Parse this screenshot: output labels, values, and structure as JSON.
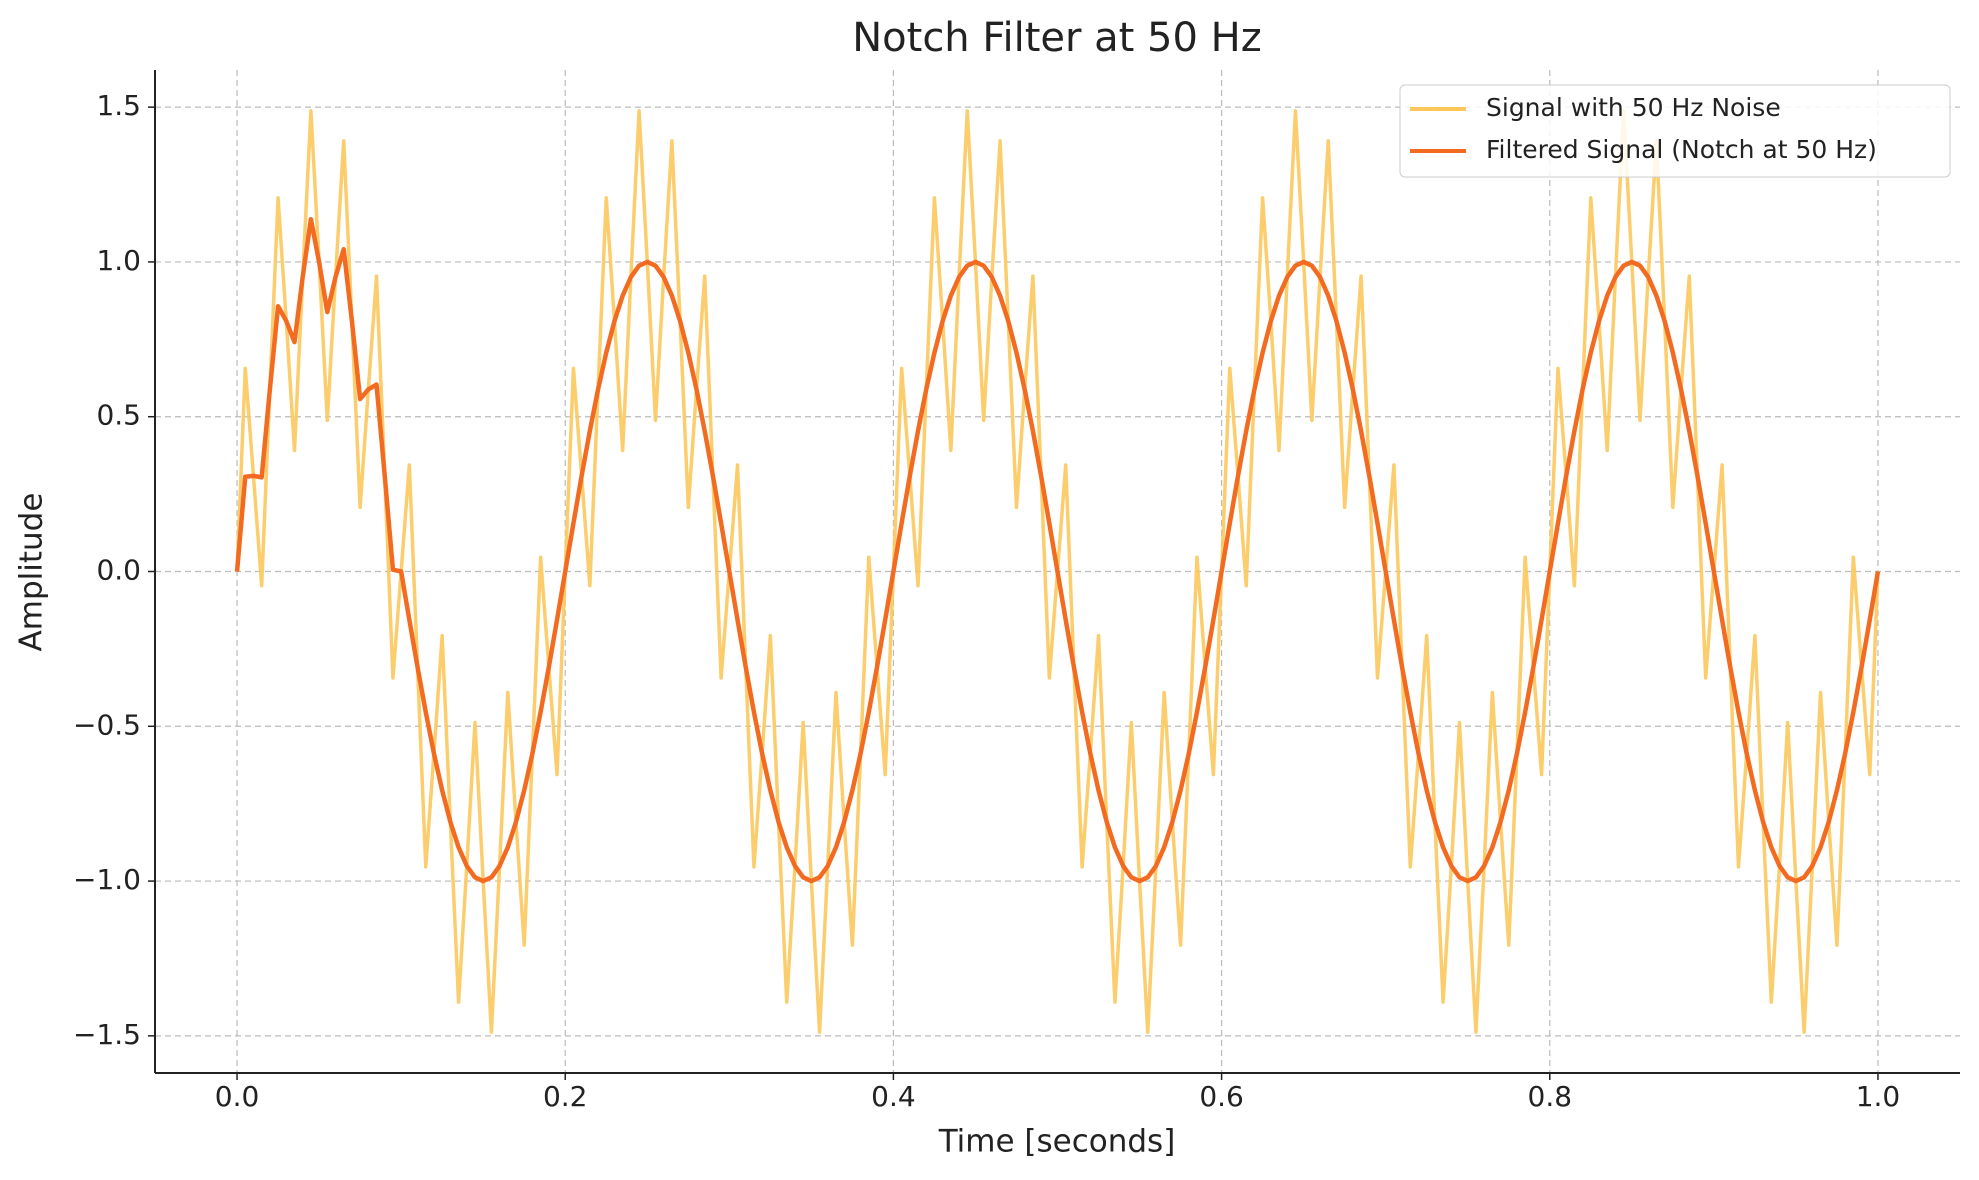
{
  "chart_data": {
    "type": "line",
    "title": "Notch Filter at 50 Hz",
    "x_label": "Time [seconds]",
    "y_label": "Amplitude",
    "x": [
      0,
      0.005,
      0.01,
      0.015,
      0.02,
      0.025,
      0.03,
      0.035,
      0.04,
      0.045,
      0.05,
      0.055,
      0.06,
      0.065,
      0.07,
      0.075,
      0.08,
      0.085,
      0.09,
      0.095,
      0.1,
      0.105,
      0.11,
      0.115,
      0.12,
      0.125,
      0.13,
      0.135,
      0.14,
      0.145,
      0.15,
      0.155,
      0.16,
      0.165,
      0.17,
      0.175,
      0.18,
      0.185,
      0.19,
      0.195,
      0.2,
      0.205,
      0.21,
      0.215,
      0.22,
      0.225,
      0.23,
      0.235,
      0.24,
      0.245,
      0.25,
      0.255,
      0.26,
      0.265,
      0.27,
      0.275,
      0.28,
      0.285,
      0.29,
      0.295,
      0.3,
      0.305,
      0.31,
      0.315,
      0.32,
      0.325,
      0.33,
      0.335,
      0.34,
      0.345,
      0.35,
      0.355,
      0.36,
      0.365,
      0.37,
      0.375,
      0.38,
      0.385,
      0.39,
      0.395,
      0.4,
      0.405,
      0.41,
      0.415,
      0.42,
      0.425,
      0.43,
      0.435,
      0.44,
      0.445,
      0.45,
      0.455,
      0.46,
      0.465,
      0.47,
      0.475,
      0.48,
      0.485,
      0.49,
      0.495,
      0.5,
      0.505,
      0.51,
      0.515,
      0.52,
      0.525,
      0.53,
      0.535,
      0.54,
      0.545,
      0.55,
      0.555,
      0.56,
      0.565,
      0.57,
      0.575,
      0.58,
      0.585,
      0.59,
      0.595,
      0.6,
      0.605,
      0.61,
      0.615,
      0.62,
      0.625,
      0.63,
      0.635,
      0.64,
      0.645,
      0.65,
      0.655,
      0.66,
      0.665,
      0.67,
      0.675,
      0.68,
      0.685,
      0.69,
      0.695,
      0.7,
      0.705,
      0.71,
      0.715,
      0.72,
      0.725,
      0.73,
      0.735,
      0.74,
      0.745,
      0.75,
      0.755,
      0.76,
      0.765,
      0.77,
      0.775,
      0.78,
      0.785,
      0.79,
      0.795,
      0.8,
      0.805,
      0.81,
      0.815,
      0.82,
      0.825,
      0.83,
      0.835,
      0.84,
      0.845,
      0.85,
      0.855,
      0.86,
      0.865,
      0.87,
      0.875,
      0.88,
      0.885,
      0.89,
      0.895,
      0.9,
      0.905,
      0.91,
      0.915,
      0.92,
      0.925,
      0.93,
      0.935,
      0.94,
      0.945,
      0.95,
      0.955,
      0.96,
      0.965,
      0.97,
      0.975,
      0.98,
      0.985,
      0.99,
      0.995,
      1
    ],
    "series": [
      {
        "name": "Signal with 50 Hz Noise",
        "color": "#fcc85c",
        "values": [
          0,
          0.656,
          0.309,
          -0.046,
          0.588,
          1.207,
          0.809,
          0.391,
          0.951,
          1.488,
          1,
          0.488,
          0.951,
          1.391,
          0.809,
          0.207,
          0.588,
          0.954,
          0.309,
          -0.344,
          0,
          0.344,
          -0.309,
          -0.954,
          -0.588,
          -0.207,
          -0.809,
          -1.391,
          -0.951,
          -0.488,
          -1,
          -1.488,
          -0.951,
          -0.391,
          -0.809,
          -1.207,
          -0.588,
          0.046,
          -0.309,
          -0.656,
          0,
          0.656,
          0.309,
          -0.046,
          0.588,
          1.207,
          0.809,
          0.391,
          0.951,
          1.488,
          1,
          0.488,
          0.951,
          1.391,
          0.809,
          0.207,
          0.588,
          0.954,
          0.309,
          -0.344,
          0,
          0.344,
          -0.309,
          -0.954,
          -0.588,
          -0.207,
          -0.809,
          -1.391,
          -0.951,
          -0.488,
          -1,
          -1.488,
          -0.951,
          -0.391,
          -0.809,
          -1.207,
          -0.588,
          0.046,
          -0.309,
          -0.656,
          0,
          0.656,
          0.309,
          -0.046,
          0.588,
          1.207,
          0.809,
          0.391,
          0.951,
          1.488,
          1,
          0.488,
          0.951,
          1.391,
          0.809,
          0.207,
          0.588,
          0.954,
          0.309,
          -0.344,
          0,
          0.344,
          -0.309,
          -0.954,
          -0.588,
          -0.207,
          -0.809,
          -1.391,
          -0.951,
          -0.488,
          -1,
          -1.488,
          -0.951,
          -0.391,
          -0.809,
          -1.207,
          -0.588,
          0.046,
          -0.309,
          -0.656,
          0,
          0.656,
          0.309,
          -0.046,
          0.588,
          1.207,
          0.809,
          0.391,
          0.951,
          1.488,
          1,
          0.488,
          0.951,
          1.391,
          0.809,
          0.207,
          0.588,
          0.954,
          0.309,
          -0.344,
          0,
          0.344,
          -0.309,
          -0.954,
          -0.588,
          -0.207,
          -0.809,
          -1.391,
          -0.951,
          -0.488,
          -1,
          -1.488,
          -0.951,
          -0.391,
          -0.809,
          -1.207,
          -0.588,
          0.046,
          -0.309,
          -0.656,
          0,
          0.656,
          0.309,
          -0.046,
          0.588,
          1.207,
          0.809,
          0.391,
          0.951,
          1.488,
          1,
          0.488,
          0.951,
          1.391,
          0.809,
          0.207,
          0.588,
          0.954,
          0.309,
          -0.344,
          0,
          0.344,
          -0.309,
          -0.954,
          -0.588,
          -0.207,
          -0.809,
          -1.391,
          -0.951,
          -0.488,
          -1,
          -1.488,
          -0.951,
          -0.391,
          -0.809,
          -1.207,
          -0.588,
          0.046,
          -0.309,
          -0.656,
          0
        ]
      },
      {
        "name": "Filtered Signal (Notch at 50 Hz)",
        "color": "#f26b21",
        "values": [
          0,
          0.306,
          0.309,
          0.304,
          0.588,
          0.857,
          0.809,
          0.741,
          0.951,
          1.138,
          1,
          0.838,
          0.951,
          1.041,
          0.809,
          0.557,
          0.588,
          0.604,
          0.309,
          0.006,
          0,
          -0.156,
          -0.309,
          -0.454,
          -0.588,
          -0.707,
          -0.809,
          -0.891,
          -0.951,
          -0.988,
          -1,
          -0.988,
          -0.951,
          -0.891,
          -0.809,
          -0.707,
          -0.588,
          -0.454,
          -0.309,
          -0.156,
          0,
          0.156,
          0.309,
          0.454,
          0.588,
          0.707,
          0.809,
          0.891,
          0.951,
          0.988,
          1,
          0.988,
          0.951,
          0.891,
          0.809,
          0.707,
          0.588,
          0.454,
          0.309,
          0.156,
          0,
          -0.156,
          -0.309,
          -0.454,
          -0.588,
          -0.707,
          -0.809,
          -0.891,
          -0.951,
          -0.988,
          -1,
          -0.988,
          -0.951,
          -0.891,
          -0.809,
          -0.707,
          -0.588,
          -0.454,
          -0.309,
          -0.156,
          0,
          0.156,
          0.309,
          0.454,
          0.588,
          0.707,
          0.809,
          0.891,
          0.951,
          0.988,
          1,
          0.988,
          0.951,
          0.891,
          0.809,
          0.707,
          0.588,
          0.454,
          0.309,
          0.156,
          0,
          -0.156,
          -0.309,
          -0.454,
          -0.588,
          -0.707,
          -0.809,
          -0.891,
          -0.951,
          -0.988,
          -1,
          -0.988,
          -0.951,
          -0.891,
          -0.809,
          -0.707,
          -0.588,
          -0.454,
          -0.309,
          -0.156,
          0,
          0.156,
          0.309,
          0.454,
          0.588,
          0.707,
          0.809,
          0.891,
          0.951,
          0.988,
          1,
          0.988,
          0.951,
          0.891,
          0.809,
          0.707,
          0.588,
          0.454,
          0.309,
          0.156,
          0,
          -0.156,
          -0.309,
          -0.454,
          -0.588,
          -0.707,
          -0.809,
          -0.891,
          -0.951,
          -0.988,
          -1,
          -0.988,
          -0.951,
          -0.891,
          -0.809,
          -0.707,
          -0.588,
          -0.454,
          -0.309,
          -0.156,
          0,
          0.156,
          0.309,
          0.454,
          0.588,
          0.707,
          0.809,
          0.891,
          0.951,
          0.988,
          1,
          0.988,
          0.951,
          0.891,
          0.809,
          0.707,
          0.588,
          0.454,
          0.309,
          0.156,
          0,
          -0.156,
          -0.309,
          -0.454,
          -0.588,
          -0.707,
          -0.809,
          -0.891,
          -0.951,
          -0.988,
          -1,
          -0.988,
          -0.951,
          -0.891,
          -0.809,
          -0.707,
          -0.588,
          -0.454,
          -0.309,
          -0.156,
          0
        ]
      }
    ],
    "xlim": [
      -0.05,
      1.05
    ],
    "ylim": [
      -1.62,
      1.62
    ],
    "xticks": [
      {
        "value": 0,
        "label": "0.0"
      },
      0.2,
      0.4,
      0.6,
      0.8,
      {
        "value": 1,
        "label": "1.0"
      }
    ],
    "yticks": [
      {
        "value": -1.5,
        "label": "−1.5"
      },
      {
        "value": -1,
        "label": "−1.0"
      },
      {
        "value": -0.5,
        "label": "−0.5"
      },
      {
        "value": 0,
        "label": "0.0"
      },
      0.5,
      {
        "value": 1,
        "label": "1.0"
      },
      1.5
    ],
    "grid": true,
    "legend": "upper-right"
  }
}
